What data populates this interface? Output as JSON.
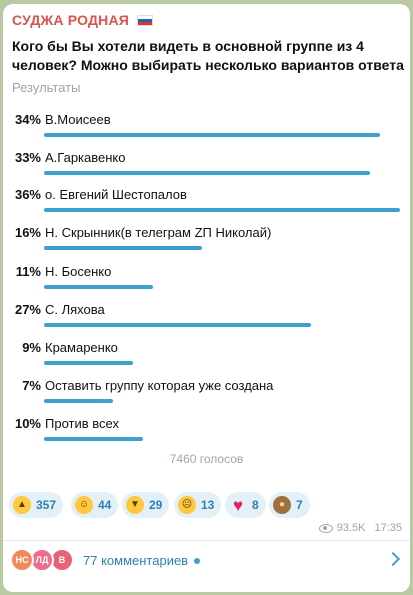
{
  "channel": {
    "name": "СУДЖА РОДНАЯ",
    "flag_icon": "russia-flag-icon"
  },
  "poll": {
    "question": "Кого бы Вы хотели видеть в основной группе из 4 человек? Можно выбирать несколько вариантов ответа",
    "results_label": "Результаты",
    "options": [
      {
        "percent": 34,
        "percent_label": "34%",
        "label": "В.Моисеев"
      },
      {
        "percent": 33,
        "percent_label": "33%",
        "label": "А.Гаркавенко"
      },
      {
        "percent": 36,
        "percent_label": "36%",
        "label": "о. Евгений Шестопалов"
      },
      {
        "percent": 16,
        "percent_label": "16%",
        "label": "Н. Скрынник(в телеграм ZП Николай)"
      },
      {
        "percent": 11,
        "percent_label": "11%",
        "label": "Н. Босенко"
      },
      {
        "percent": 27,
        "percent_label": "27%",
        "label": "С. Ляхова"
      },
      {
        "percent": 9,
        "percent_label": "9%",
        "label": "Крамаренко"
      },
      {
        "percent": 7,
        "percent_label": "7%",
        "label": "Оставить группу которая уже создана"
      },
      {
        "percent": 10,
        "percent_label": "10%",
        "label": "Против всех"
      }
    ],
    "votes": "7460 голосов"
  },
  "reactions": [
    {
      "icon": "thumbs-up-icon",
      "count": "357"
    },
    {
      "icon": "grinning-face-icon",
      "count": "44"
    },
    {
      "icon": "thumbs-down-icon",
      "count": "29"
    },
    {
      "icon": "confused-face-icon",
      "count": "13"
    },
    {
      "icon": "heart-icon",
      "count": "8"
    },
    {
      "icon": "see-no-evil-monkey-icon",
      "count": "7"
    }
  ],
  "meta": {
    "views": "93.5K",
    "time": "17:35"
  },
  "comments": {
    "avatars": [
      "НС",
      "ЛД",
      "В"
    ],
    "label": "77 комментариев"
  },
  "colors": {
    "accent": "#3ea0d0",
    "channel": "#d9534f",
    "background": "#b9c9a4"
  }
}
